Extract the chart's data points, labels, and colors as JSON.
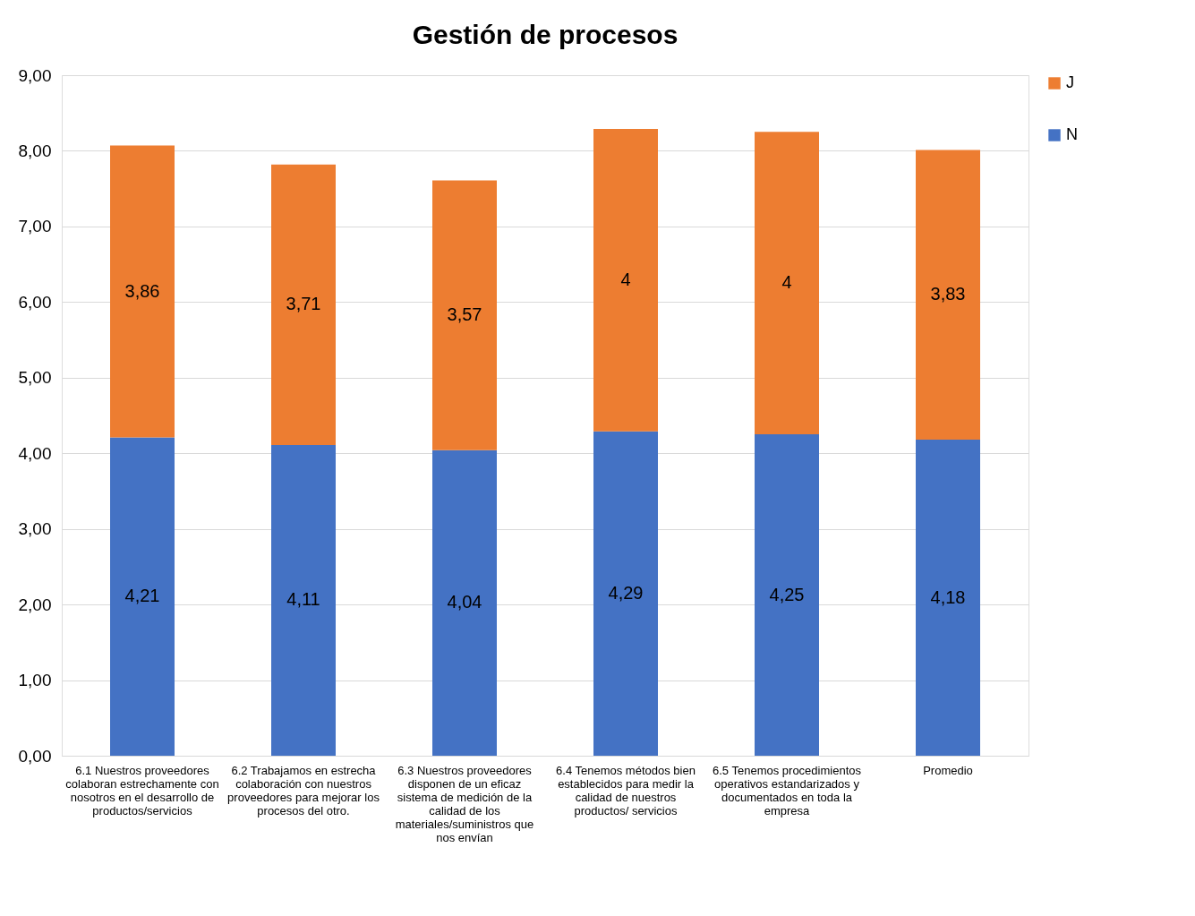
{
  "chart_data": {
    "type": "bar",
    "title": "Gestión de procesos",
    "stacked": true,
    "categories": [
      "6.1 Nuestros proveedores colaboran estrechamente con nosotros en el desarrollo de productos/servicios",
      "6.2 Trabajamos en estrecha colaboración con nuestros proveedores para mejorar los procesos del otro.",
      "6.3 Nuestros proveedores disponen de un eficaz sistema de medición de la calidad de los materiales/suministros que nos envían",
      "6.4 Tenemos métodos bien establecidos para medir la calidad de nuestros productos/ servicios",
      "6.5 Tenemos procedimientos operativos estandarizados y documentados en toda la empresa",
      "Promedio"
    ],
    "series": [
      {
        "name": "N",
        "color": "#4472c4",
        "values": [
          4.21,
          4.11,
          4.04,
          4.29,
          4.25,
          4.18
        ],
        "value_labels": [
          "4,21",
          "4,11",
          "4,04",
          "4,29",
          "4,25",
          "4,18"
        ]
      },
      {
        "name": "J",
        "color": "#ed7d31",
        "values": [
          3.86,
          3.71,
          3.57,
          4,
          4,
          3.83
        ],
        "value_labels": [
          "3,86",
          "3,71",
          "3,57",
          "4",
          "4",
          "3,83"
        ]
      }
    ],
    "ylim": [
      0,
      9
    ],
    "yticks": [
      {
        "value": 0,
        "label": "0,00"
      },
      {
        "value": 1,
        "label": "1,00"
      },
      {
        "value": 2,
        "label": "2,00"
      },
      {
        "value": 3,
        "label": "3,00"
      },
      {
        "value": 4,
        "label": "4,00"
      },
      {
        "value": 5,
        "label": "5,00"
      },
      {
        "value": 6,
        "label": "6,00"
      },
      {
        "value": 7,
        "label": "7,00"
      },
      {
        "value": 8,
        "label": "8,00"
      },
      {
        "value": 9,
        "label": "9,00"
      }
    ],
    "grid": "y",
    "legend": "right"
  }
}
